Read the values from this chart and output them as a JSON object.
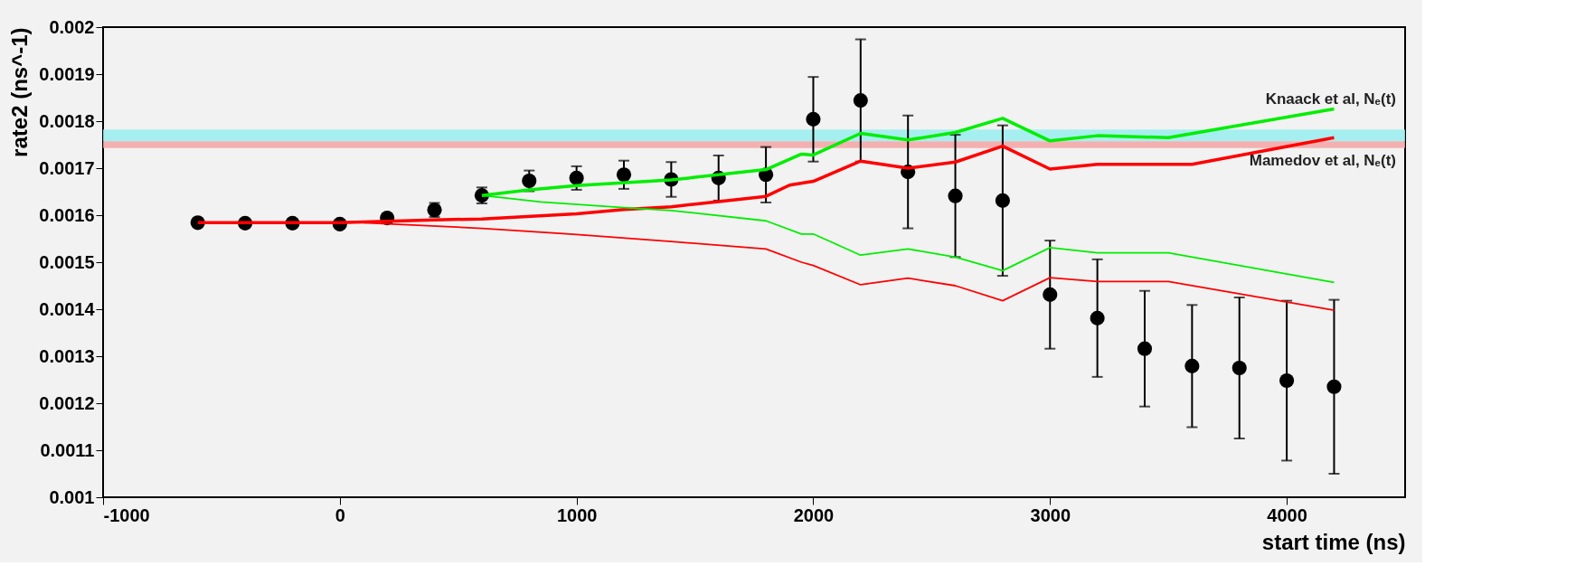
{
  "chart_data": {
    "type": "scatter",
    "xlabel": "start time (ns)",
    "ylabel": "rate2 (ns^-1)",
    "xlim": [
      -1000,
      4500
    ],
    "xticks": [
      -1000,
      0,
      1000,
      2000,
      3000,
      4000
    ],
    "ylim": [
      0.001,
      0.002
    ],
    "yticks": [
      0.001,
      0.0011,
      0.0012,
      0.0013,
      0.0014,
      0.0015,
      0.0016,
      0.0017,
      0.0018,
      0.0019,
      0.002
    ],
    "grid": false,
    "bands": [
      {
        "axis": "y",
        "from": 0.001757,
        "to": 0.001782,
        "label": "Knaack et al, Nₑ(t)",
        "color": "#99eef0"
      },
      {
        "axis": "y",
        "from": 0.001743,
        "to": 0.001757,
        "label": "Mamedov et al, Nₑ(t)",
        "color": "#f4a4a4"
      }
    ],
    "series": [
      {
        "type": "line",
        "color": "#ff0000",
        "x": [
          -600,
          0,
          400,
          600,
          1000,
          1200,
          1400,
          1600,
          1800,
          1900,
          2000,
          2200,
          2400,
          2600,
          2800,
          3000,
          3200,
          3600,
          4200
        ],
        "values": [
          0.001584,
          0.001584,
          0.00159,
          0.001592,
          0.001603,
          0.001612,
          0.001618,
          0.001629,
          0.00164,
          0.001664,
          0.001672,
          0.001715,
          0.0017,
          0.001713,
          0.001747,
          0.001698,
          0.001708,
          0.001708,
          0.001765
        ]
      },
      {
        "type": "line",
        "color": "#ff0000",
        "x": [
          100,
          600,
          1000,
          1400,
          1800,
          1950,
          2000,
          2200,
          2400,
          2600,
          2800,
          3000,
          3200,
          3500,
          4200
        ],
        "values": [
          0.001584,
          0.001572,
          0.001559,
          0.001544,
          0.001528,
          0.0015,
          0.001493,
          0.001452,
          0.001466,
          0.00145,
          0.001418,
          0.001467,
          0.001459,
          0.001459,
          0.001398
        ]
      },
      {
        "type": "line",
        "color": "#00ee00",
        "x": [
          600,
          800,
          1000,
          1400,
          1800,
          1950,
          2000,
          2200,
          2400,
          2600,
          2800,
          3000,
          3200,
          3500,
          4200
        ],
        "values": [
          0.001642,
          0.001654,
          0.001663,
          0.001675,
          0.001697,
          0.00173,
          0.001728,
          0.001774,
          0.00176,
          0.001776,
          0.001806,
          0.001758,
          0.001769,
          0.001765,
          0.001826
        ]
      },
      {
        "type": "line",
        "color": "#00ee00",
        "x": [
          600,
          850,
          1200,
          1400,
          1800,
          1950,
          2000,
          2200,
          2400,
          2600,
          2800,
          3000,
          3200,
          3500,
          4200
        ],
        "values": [
          0.001642,
          0.001628,
          0.001616,
          0.00161,
          0.001588,
          0.00156,
          0.00156,
          0.001515,
          0.001528,
          0.001511,
          0.001482,
          0.001531,
          0.00152,
          0.00152,
          0.001457
        ]
      },
      {
        "type": "scatter",
        "color": "#000000",
        "marker": "circle",
        "x": [
          -600,
          -400,
          -200,
          0,
          200,
          400,
          600,
          800,
          1000,
          1200,
          1400,
          1600,
          1800,
          2000,
          2200,
          2400,
          2600,
          2800,
          3000,
          3200,
          3400,
          3600,
          3800,
          4000,
          4200
        ],
        "values": [
          0.001584,
          0.001583,
          0.001583,
          0.001581,
          0.001594,
          0.001611,
          0.001642,
          0.001673,
          0.001679,
          0.001686,
          0.001676,
          0.001679,
          0.001686,
          0.001804,
          0.001844,
          0.001692,
          0.001641,
          0.001631,
          0.001431,
          0.001381,
          0.001316,
          0.001279,
          0.001275,
          0.001248,
          0.001235
        ],
        "errors": [
          5e-06,
          5e-06,
          5e-06,
          5e-06,
          1e-05,
          1.5e-05,
          1.7e-05,
          2.2e-05,
          2.5e-05,
          3e-05,
          3.7e-05,
          4.8e-05,
          5.9e-05,
          9e-05,
          0.00013,
          0.00012,
          0.00013,
          0.00016,
          0.000115,
          0.000125,
          0.000123,
          0.00013,
          0.00015,
          0.00017,
          0.000185
        ]
      }
    ]
  }
}
